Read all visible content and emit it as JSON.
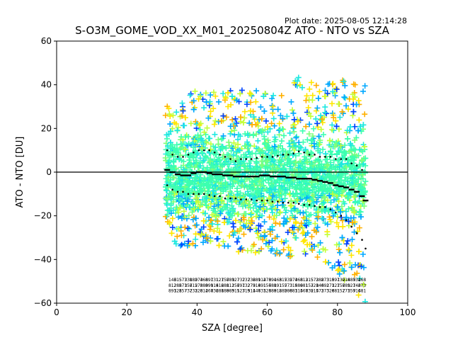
{
  "plot_date": "Plot date: 2025-08-05 12:14:28",
  "chart_data": {
    "type": "scatter",
    "title": "S-O3M_GOME_VOD_XX_M01_20250804Z ATO - NTO vs SZA",
    "xlabel": "SZA [degree]",
    "ylabel": "ATO - NTO [DU]",
    "xlim": [
      0,
      100
    ],
    "ylim": [
      -60,
      60
    ],
    "xticks": [
      0,
      20,
      40,
      60,
      80,
      100
    ],
    "yticks": [
      -60,
      -40,
      -20,
      0,
      20,
      40,
      60
    ],
    "grid": false,
    "reference_line": 0,
    "colormap": [
      "#0044ff",
      "#00a8ff",
      "#1ee8e0",
      "#3cffb0",
      "#7dff7a",
      "#c2ff38",
      "#ffe600",
      "#ffb000"
    ],
    "scatter_envelope": {
      "x_range": [
        31,
        88
      ],
      "upper": [
        [
          31,
          30
        ],
        [
          35,
          32
        ],
        [
          40,
          38
        ],
        [
          45,
          40
        ],
        [
          50,
          37
        ],
        [
          55,
          38
        ],
        [
          60,
          36
        ],
        [
          65,
          38
        ],
        [
          70,
          45
        ],
        [
          75,
          40
        ],
        [
          80,
          42
        ],
        [
          85,
          43
        ],
        [
          88,
          40
        ]
      ],
      "lower": [
        [
          31,
          -30
        ],
        [
          35,
          -34
        ],
        [
          40,
          -34
        ],
        [
          45,
          -33
        ],
        [
          50,
          -36
        ],
        [
          55,
          -38
        ],
        [
          60,
          -36
        ],
        [
          65,
          -40
        ],
        [
          70,
          -37
        ],
        [
          75,
          -40
        ],
        [
          80,
          -47
        ],
        [
          85,
          -55
        ],
        [
          88,
          -60
        ]
      ]
    },
    "series": [
      {
        "name": "median",
        "x": [
          31.5,
          33,
          34.5,
          36,
          37.5,
          39,
          40.5,
          42,
          43.5,
          45,
          46.5,
          48,
          49.5,
          51,
          52.5,
          54,
          55.5,
          57,
          58.5,
          60,
          61.5,
          63,
          64.5,
          66,
          67.5,
          69,
          70.5,
          72,
          73.5,
          75,
          76.5,
          78,
          79.5,
          81,
          82.5,
          84,
          85.5,
          87,
          88
        ],
        "y": [
          1,
          0,
          -1,
          -1.5,
          -1.5,
          -0.5,
          0,
          0,
          -0.5,
          -1,
          -1,
          -1.5,
          -1.5,
          -2,
          -2,
          -2,
          -2,
          -2,
          -1.5,
          -1.5,
          -2,
          -2,
          -2,
          -2.5,
          -2.5,
          -3,
          -3,
          -3,
          -3.5,
          -4,
          -4.5,
          -5,
          -6,
          -6.5,
          -7,
          -8,
          -9,
          -11,
          -13
        ]
      },
      {
        "name": "upper",
        "x": [
          31.5,
          33,
          34.5,
          36,
          37.5,
          39,
          40.5,
          42,
          43.5,
          45,
          46.5,
          48,
          49.5,
          51,
          52.5,
          54,
          55.5,
          57,
          58.5,
          60,
          61.5,
          63,
          64.5,
          66,
          67.5,
          69,
          70.5,
          72,
          73.5,
          75,
          76.5,
          78,
          79.5,
          81,
          82.5,
          84,
          85.5,
          87
        ],
        "y": [
          10,
          8,
          7,
          7,
          8,
          9,
          10,
          10,
          10,
          9,
          8,
          7,
          6,
          5,
          6,
          6,
          6,
          6.5,
          7,
          7,
          7,
          7.5,
          8,
          8,
          8.5,
          9.5,
          9,
          8,
          8,
          7,
          7,
          7,
          6,
          6,
          6,
          4,
          3,
          1
        ]
      },
      {
        "name": "lower",
        "x": [
          31.5,
          33,
          34.5,
          36,
          37.5,
          39,
          40.5,
          42,
          43.5,
          45,
          46.5,
          48,
          49.5,
          51,
          52.5,
          54,
          55.5,
          57,
          58.5,
          60,
          61.5,
          63,
          64.5,
          66,
          67.5,
          69,
          70.5,
          72,
          73.5,
          75,
          76.5,
          78,
          79.5,
          81,
          82.5,
          84,
          85.5,
          87,
          88
        ],
        "y": [
          -6,
          -8,
          -9,
          -9,
          -10,
          -10,
          -10,
          -10,
          -10.5,
          -11,
          -11,
          -12,
          -12,
          -12,
          -12.5,
          -12.5,
          -12.5,
          -13,
          -13,
          -13,
          -13.5,
          -13.5,
          -14,
          -14,
          -14,
          -14.5,
          -15,
          -15,
          -15.5,
          -16,
          -16,
          -17,
          -18.5,
          -20,
          -22,
          -25,
          -28,
          -31,
          -35
        ]
      }
    ],
    "count_annotations": {
      "y_rows": [
        -50,
        -52.5,
        -55
      ],
      "x_range": [
        33,
        87
      ],
      "text": "3157328891468127"
    }
  }
}
